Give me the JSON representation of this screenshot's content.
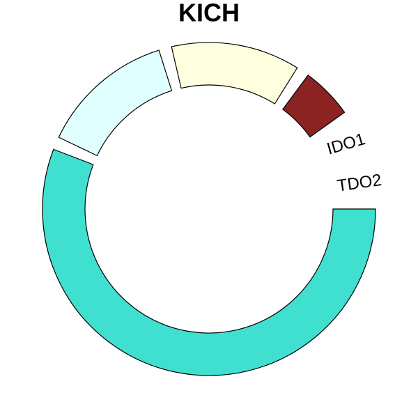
{
  "chart_data": {
    "type": "donut",
    "title": "KICH",
    "categories": [
      null,
      null,
      null,
      null
    ],
    "values": [
      201,
      47,
      45,
      18
    ],
    "colors": [
      "#40e0d0",
      "#e0ffff",
      "#ffffe0",
      "#8b2323"
    ],
    "annotations": [
      "IDO1",
      "TDO2"
    ]
  }
}
